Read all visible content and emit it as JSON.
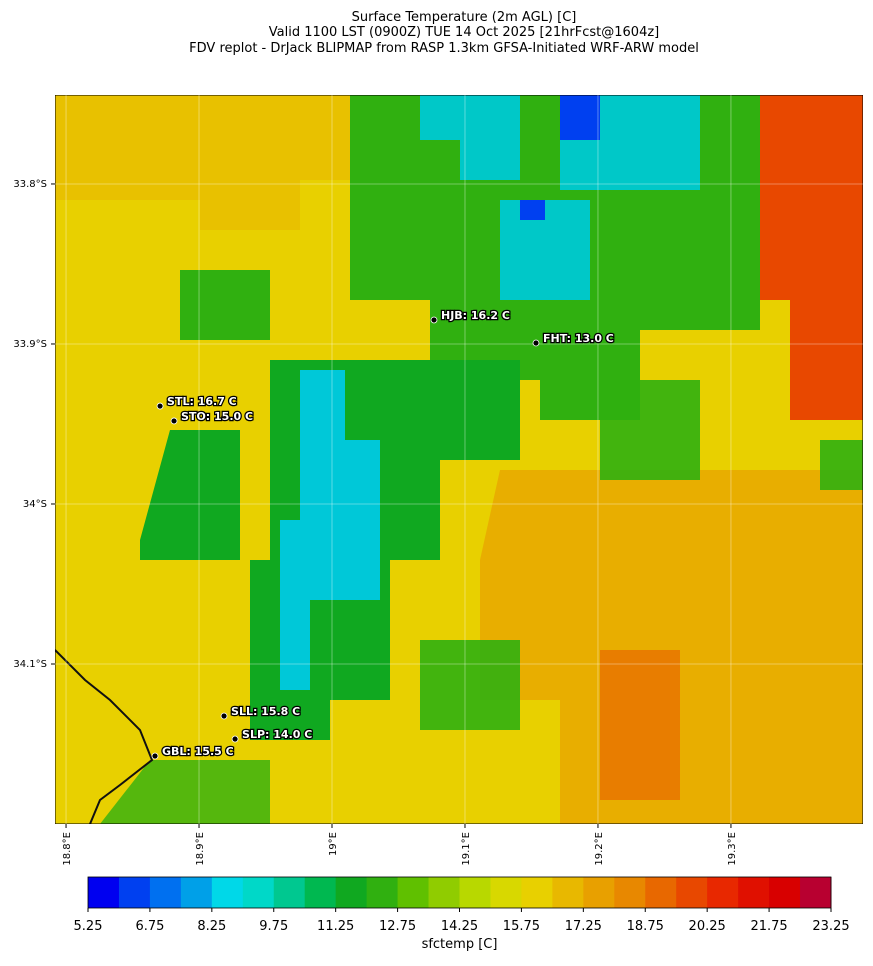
{
  "map": {
    "title": [
      "Surface Temperature (2m AGL) [C]",
      "Valid 1100 LST (0900Z) TUE 14 Oct 2025 [21hrFcst@1604z]",
      "FDV replot - DrJack BLIPMAP from RASP 1.3km GFSA-Initiated WRF-ARW model"
    ],
    "xlim": [
      18.7917,
      19.3993
    ],
    "ylim": [
      -34.2,
      -33.7444
    ],
    "xticks": [
      {
        "value": 18.8,
        "label": "18.8°E"
      },
      {
        "value": 18.9,
        "label": "18.9°E"
      },
      {
        "value": 19.0,
        "label": "19°E"
      },
      {
        "value": 19.1,
        "label": "19.1°E"
      },
      {
        "value": 19.2,
        "label": "19.2°E"
      },
      {
        "value": 19.3,
        "label": "19.3°E"
      }
    ],
    "yticks": [
      {
        "value": -33.8,
        "label": "33.8°S"
      },
      {
        "value": -33.9,
        "label": "33.9°S"
      },
      {
        "value": -34.0,
        "label": "34°S"
      },
      {
        "value": -34.1,
        "label": "34.1°S"
      }
    ],
    "stations": [
      {
        "label": "HJB: 16.2 C",
        "lon": 19.0767,
        "lat": -33.885
      },
      {
        "label": "FHT: 13.0 C",
        "lon": 19.1534,
        "lat": -33.8994
      },
      {
        "label": "STL: 16.7 C",
        "lon": 18.8707,
        "lat": -33.9388
      },
      {
        "label": "STO: 15.0 C",
        "lon": 18.8812,
        "lat": -33.9481
      },
      {
        "label": "SLL: 15.8 C",
        "lon": 18.9188,
        "lat": -34.1325
      },
      {
        "label": "SLP: 14.0 C",
        "lon": 18.9271,
        "lat": -34.1469
      },
      {
        "label": "GBL: 15.5 C",
        "lon": 18.8669,
        "lat": -34.1575
      }
    ]
  },
  "colorbar": {
    "label": "sfctemp [C]",
    "lim": [
      5.25,
      23.25
    ],
    "ticks": [
      5.25,
      6.75,
      8.25,
      9.75,
      11.25,
      12.75,
      14.25,
      15.75,
      17.25,
      18.75,
      20.25,
      21.75,
      23.25
    ],
    "colors": [
      "#0000f0",
      "#0040f0",
      "#0070f0",
      "#00a0e8",
      "#00d8e8",
      "#00d8c8",
      "#00c890",
      "#00b850",
      "#10a820",
      "#30b010",
      "#60c000",
      "#90cc00",
      "#b8d800",
      "#d8d800",
      "#e8d000",
      "#e8b800",
      "#e8a000",
      "#e88800",
      "#e86800",
      "#e84800",
      "#e82800",
      "#e01000",
      "#d80000",
      "#b80030"
    ]
  }
}
